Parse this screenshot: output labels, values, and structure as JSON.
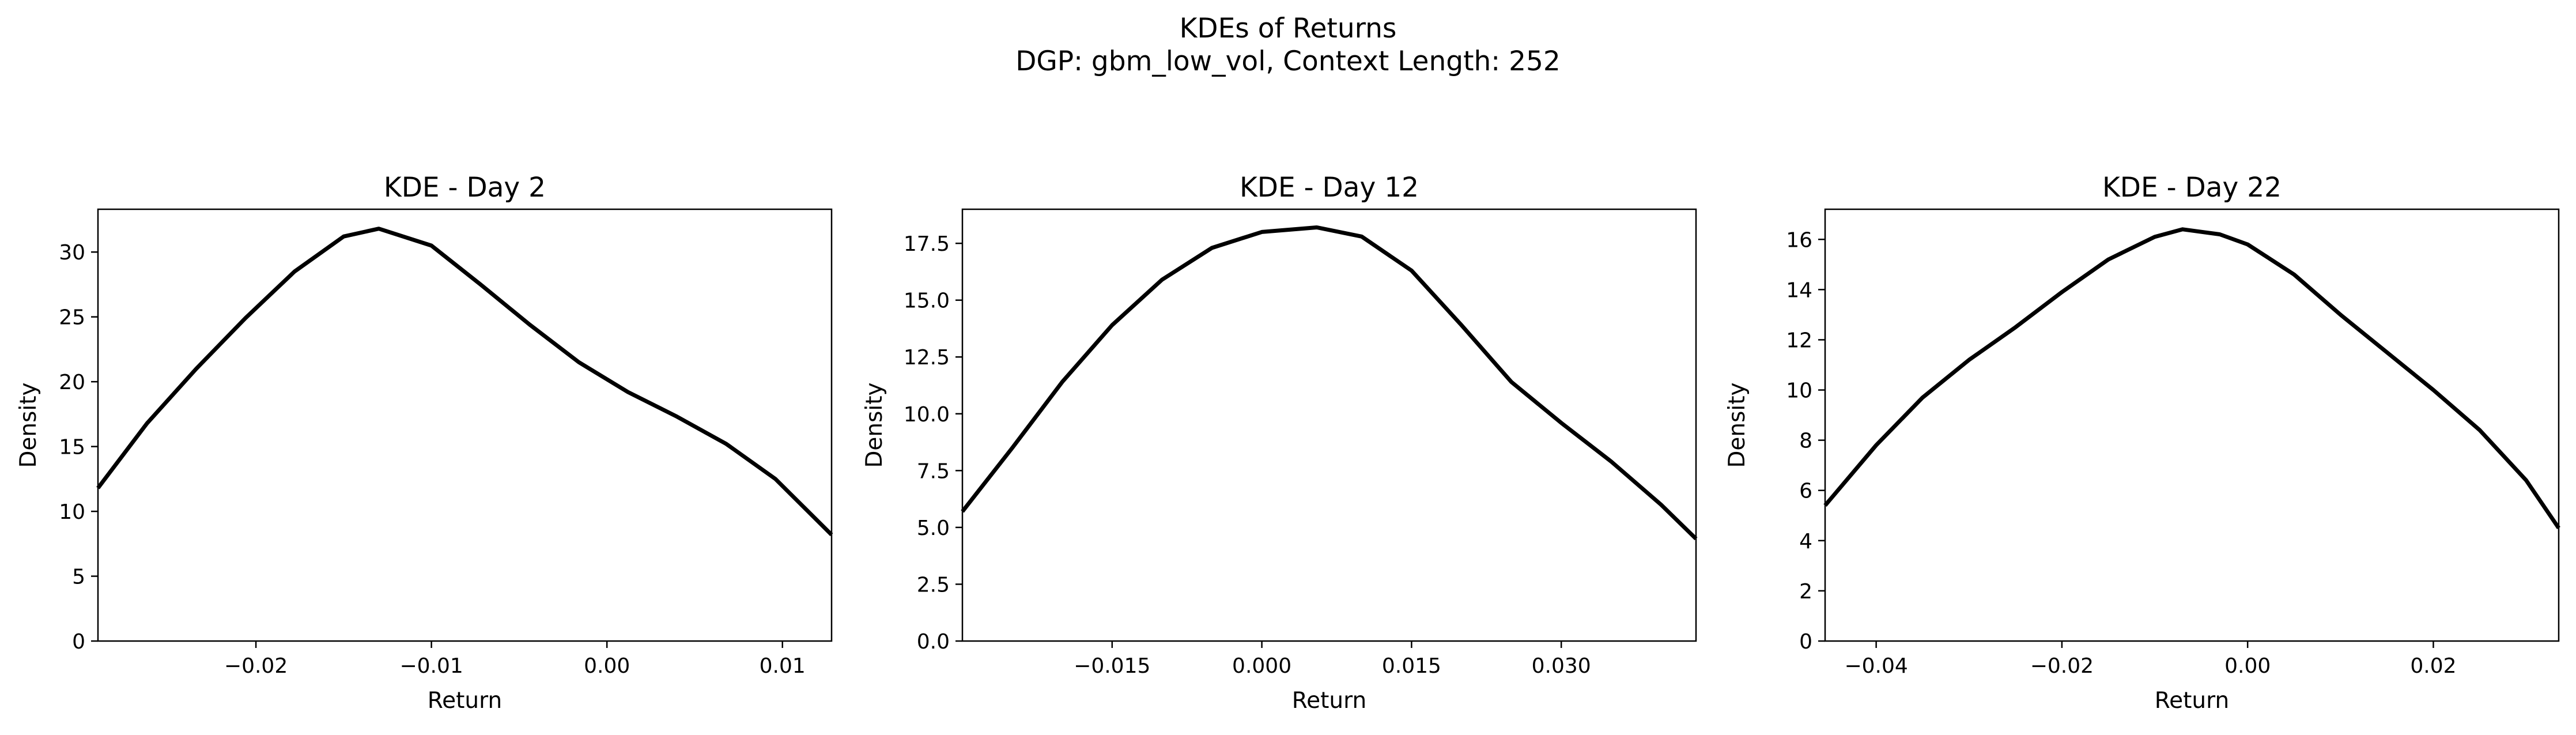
{
  "figure": {
    "title_line1": "KDEs of Returns",
    "title_line2": "DGP: gbm_low_vol, Context Length: 252"
  },
  "chart_data": [
    {
      "type": "line",
      "title": "KDE - Day 2",
      "xlabel": "Return",
      "ylabel": "Density",
      "xlim": [
        -0.029,
        0.0128
      ],
      "ylim": [
        0,
        33.3
      ],
      "xticks": [
        -0.02,
        -0.01,
        0.0,
        0.01
      ],
      "xtick_labels": [
        "−0.02",
        "−0.01",
        "0.00",
        "0.01"
      ],
      "yticks": [
        0,
        5,
        10,
        15,
        20,
        25,
        30
      ],
      "ytick_labels": [
        "0",
        "5",
        "10",
        "15",
        "20",
        "25",
        "30"
      ],
      "grid": false,
      "series": [
        {
          "color": "#000000",
          "x": [
            -0.029,
            -0.0262,
            -0.0234,
            -0.0206,
            -0.0178,
            -0.015,
            -0.013,
            -0.01,
            -0.0072,
            -0.0044,
            -0.0016,
            0.0012,
            0.004,
            0.0068,
            0.0096,
            0.0128
          ],
          "y": [
            11.8,
            16.8,
            21.0,
            24.9,
            28.5,
            31.2,
            31.8,
            30.5,
            27.5,
            24.4,
            21.5,
            19.2,
            17.3,
            15.2,
            12.5,
            8.2
          ]
        }
      ]
    },
    {
      "type": "line",
      "title": "KDE - Day 12",
      "xlabel": "Return",
      "ylabel": "Density",
      "xlim": [
        -0.03,
        0.0435
      ],
      "ylim": [
        0,
        19.0
      ],
      "xticks": [
        -0.015,
        0.0,
        0.015,
        0.03
      ],
      "xtick_labels": [
        "−0.015",
        "0.000",
        "0.015",
        "0.030"
      ],
      "yticks": [
        0.0,
        2.5,
        5.0,
        7.5,
        10.0,
        12.5,
        15.0,
        17.5
      ],
      "ytick_labels": [
        "0.0",
        "2.5",
        "5.0",
        "7.5",
        "10.0",
        "12.5",
        "15.0",
        "17.5"
      ],
      "grid": false,
      "series": [
        {
          "color": "#000000",
          "x": [
            -0.03,
            -0.025,
            -0.02,
            -0.015,
            -0.01,
            -0.005,
            0.0,
            0.0055,
            0.01,
            0.015,
            0.02,
            0.025,
            0.03,
            0.035,
            0.04,
            0.0435
          ],
          "y": [
            5.7,
            8.5,
            11.4,
            13.9,
            15.9,
            17.3,
            18.0,
            18.2,
            17.8,
            16.3,
            13.9,
            11.4,
            9.6,
            7.9,
            6.0,
            4.5
          ]
        }
      ]
    },
    {
      "type": "line",
      "title": "KDE - Day 22",
      "xlabel": "Return",
      "ylabel": "Density",
      "xlim": [
        -0.0455,
        0.0335
      ],
      "ylim": [
        0,
        17.2
      ],
      "xticks": [
        -0.04,
        -0.02,
        0.0,
        0.02
      ],
      "xtick_labels": [
        "−0.04",
        "−0.02",
        "0.00",
        "0.02"
      ],
      "yticks": [
        0,
        2,
        4,
        6,
        8,
        10,
        12,
        14,
        16
      ],
      "ytick_labels": [
        "0",
        "2",
        "4",
        "6",
        "8",
        "10",
        "12",
        "14",
        "16"
      ],
      "grid": false,
      "series": [
        {
          "color": "#000000",
          "x": [
            -0.0455,
            -0.04,
            -0.035,
            -0.03,
            -0.025,
            -0.02,
            -0.015,
            -0.01,
            -0.007,
            -0.003,
            0.0,
            0.005,
            0.01,
            0.015,
            0.02,
            0.025,
            0.03,
            0.0335
          ],
          "y": [
            5.4,
            7.8,
            9.7,
            11.2,
            12.5,
            13.9,
            15.2,
            16.1,
            16.4,
            16.2,
            15.8,
            14.6,
            13.0,
            11.5,
            10.0,
            8.4,
            6.4,
            4.5
          ]
        }
      ]
    }
  ]
}
